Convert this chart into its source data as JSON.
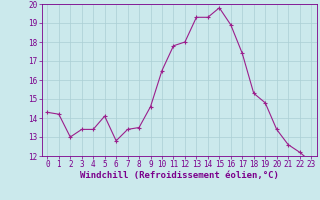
{
  "x": [
    0,
    1,
    2,
    3,
    4,
    5,
    6,
    7,
    8,
    9,
    10,
    11,
    12,
    13,
    14,
    15,
    16,
    17,
    18,
    19,
    20,
    21,
    22,
    23
  ],
  "y": [
    14.3,
    14.2,
    13.0,
    13.4,
    13.4,
    14.1,
    12.8,
    13.4,
    13.5,
    14.6,
    16.5,
    17.8,
    18.0,
    19.3,
    19.3,
    19.8,
    18.9,
    17.4,
    15.3,
    14.8,
    13.4,
    12.6,
    12.2,
    11.7
  ],
  "line_color": "#9B1F8C",
  "marker_color": "#9B1F8C",
  "bg_color": "#CBE9EC",
  "grid_color": "#AACFD4",
  "axis_label_color": "#7B008C",
  "tick_color": "#7B008C",
  "xlabel": "Windchill (Refroidissement éolien,°C)",
  "xlim": [
    -0.5,
    23.5
  ],
  "ylim": [
    12,
    20
  ],
  "yticks": [
    12,
    13,
    14,
    15,
    16,
    17,
    18,
    19,
    20
  ],
  "xticks": [
    0,
    1,
    2,
    3,
    4,
    5,
    6,
    7,
    8,
    9,
    10,
    11,
    12,
    13,
    14,
    15,
    16,
    17,
    18,
    19,
    20,
    21,
    22,
    23
  ],
  "tick_fontsize": 5.5,
  "xlabel_fontsize": 6.5
}
